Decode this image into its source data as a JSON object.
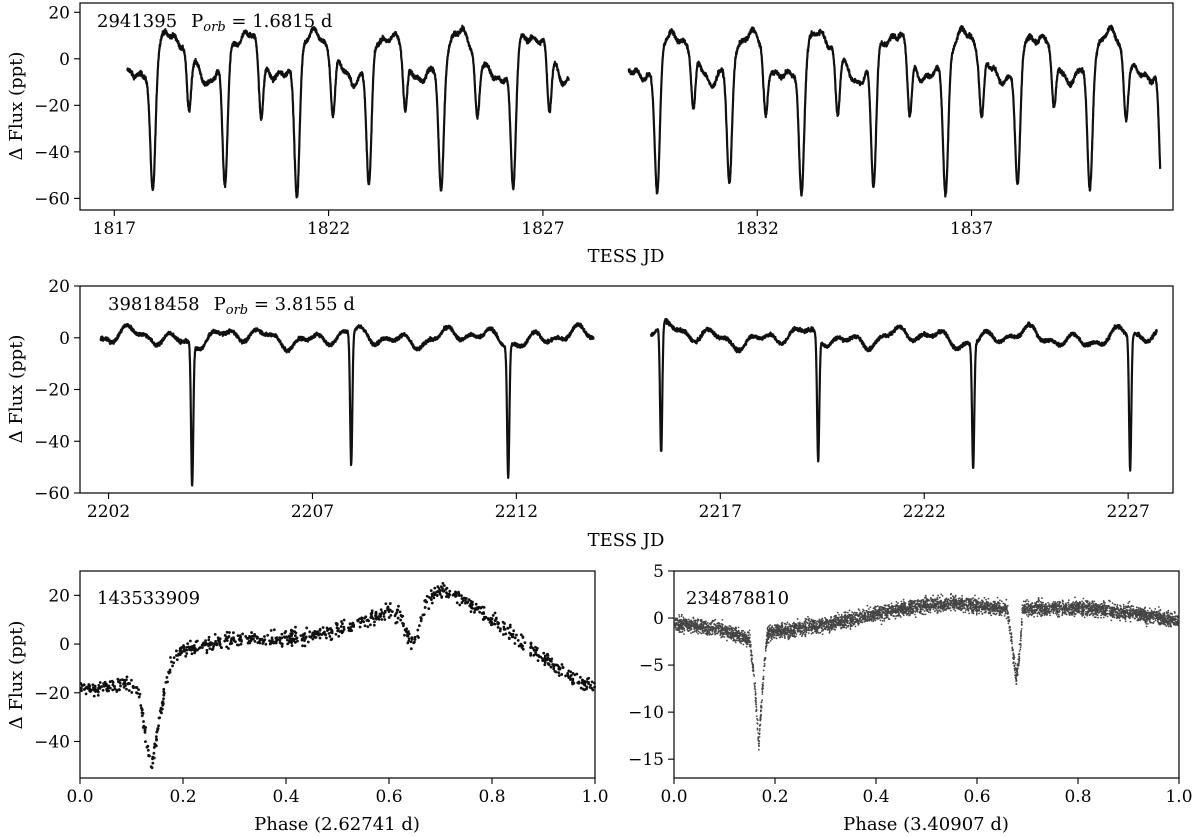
{
  "chart_data": [
    {
      "type": "line",
      "id": "p1",
      "title_id": "2941395",
      "title_label": "P",
      "title_sub": "orb",
      "title_value": " = 1.6815 d",
      "xlabel": "TESS JD",
      "ylabel": "Δ Flux (ppt)",
      "xlim": [
        1816.2,
        1841.7
      ],
      "ylim": [
        -65,
        24
      ],
      "xticks": [
        1817,
        1822,
        1827,
        1832,
        1837
      ],
      "xtick_labels": [
        "1817",
        "1822",
        "1827",
        "1832",
        "1837"
      ],
      "yticks": [
        20,
        0,
        -20,
        -40,
        -60
      ],
      "ytick_labels": [
        "20",
        "0",
        "−20",
        "−40",
        "−60"
      ],
      "segments": [
        [
          1817.3,
          1827.6
        ],
        [
          1829.0,
          1841.4
        ]
      ],
      "eb": {
        "period": 1.6815,
        "primary_epoch": 1817.9,
        "primary_depth": 58,
        "secondary_depth": 26,
        "primary_width": 0.085,
        "secondary_width": 0.07,
        "amp": 10,
        "offset": 5,
        "spot_phase": 0.3
      }
    },
    {
      "type": "line",
      "id": "p2",
      "title_id": "39818458",
      "title_label": "P",
      "title_sub": "orb",
      "title_value": " = 3.8155 d",
      "xlabel": "TESS JD",
      "ylabel": "Δ Flux (ppt)",
      "xlim": [
        2201.3,
        2228.1
      ],
      "ylim": [
        -60,
        20
      ],
      "xticks": [
        2202,
        2207,
        2212,
        2217,
        2222,
        2227
      ],
      "xtick_labels": [
        "2202",
        "2207",
        "2212",
        "2217",
        "2222",
        "2227"
      ],
      "yticks": [
        20,
        0,
        -20,
        -40,
        -60
      ],
      "ytick_labels": [
        "20",
        "0",
        "−20",
        "−40",
        "−60"
      ],
      "segments": [
        [
          2201.8,
          2213.9
        ],
        [
          2215.3,
          2227.7
        ]
      ],
      "eclipses": [
        2204.05,
        2207.95,
        2211.8,
        2215.55,
        2219.4,
        2223.2,
        2227.05
      ],
      "eclipse_depths": [
        55,
        51,
        51,
        50,
        48,
        48,
        52
      ],
      "eclipse_width": 0.06
    },
    {
      "type": "scatter",
      "id": "p3",
      "title_id": "143533909",
      "xlabel": "Phase (2.62741 d)",
      "ylabel": "Δ Flux (ppt)",
      "xlim": [
        0.0,
        1.0
      ],
      "ylim": [
        -55,
        30
      ],
      "xticks": [
        0.0,
        0.2,
        0.4,
        0.6,
        0.8,
        1.0
      ],
      "xtick_labels": [
        "0.0",
        "0.2",
        "0.4",
        "0.6",
        "0.8",
        "1.0"
      ],
      "yticks": [
        20,
        0,
        -20,
        -40
      ],
      "ytick_labels": [
        "20",
        "0",
        "−20",
        "−40"
      ],
      "profile": [
        [
          0.0,
          -19
        ],
        [
          0.1,
          -16
        ],
        [
          0.115,
          -20
        ],
        [
          0.13,
          -42
        ],
        [
          0.14,
          -50
        ],
        [
          0.155,
          -30
        ],
        [
          0.175,
          -8
        ],
        [
          0.2,
          -2
        ],
        [
          0.3,
          2
        ],
        [
          0.45,
          3
        ],
        [
          0.55,
          9
        ],
        [
          0.6,
          14
        ],
        [
          0.62,
          13
        ],
        [
          0.64,
          1
        ],
        [
          0.655,
          3
        ],
        [
          0.67,
          17
        ],
        [
          0.7,
          22
        ],
        [
          0.75,
          18
        ],
        [
          0.85,
          2
        ],
        [
          0.95,
          -13
        ],
        [
          1.0,
          -18
        ]
      ],
      "n_points": 900,
      "scatter": 2.2,
      "dot_size": 2.2
    },
    {
      "type": "scatter",
      "id": "p4",
      "title_id": "234878810",
      "xlabel": "Phase (3.40907 d)",
      "ylabel": "",
      "xlim": [
        0.0,
        1.0
      ],
      "ylim": [
        -17,
        5
      ],
      "xticks": [
        0.0,
        0.2,
        0.4,
        0.6,
        0.8,
        1.0
      ],
      "xtick_labels": [
        "0.0",
        "0.2",
        "0.4",
        "0.6",
        "0.8",
        "1.0"
      ],
      "yticks": [
        5,
        0,
        -5,
        -10,
        -15
      ],
      "ytick_labels": [
        "5",
        "0",
        "−5",
        "−10",
        "−15"
      ],
      "profile": [
        [
          0.0,
          -0.5
        ],
        [
          0.1,
          -1.3
        ],
        [
          0.15,
          -2.3
        ],
        [
          0.16,
          -7
        ],
        [
          0.168,
          -13.5
        ],
        [
          0.176,
          -7
        ],
        [
          0.185,
          -1.6
        ],
        [
          0.3,
          -0.7
        ],
        [
          0.45,
          1.0
        ],
        [
          0.55,
          1.6
        ],
        [
          0.66,
          1.0
        ],
        [
          0.67,
          -3
        ],
        [
          0.678,
          -6.5
        ],
        [
          0.686,
          -3
        ],
        [
          0.69,
          1.0
        ],
        [
          0.8,
          1.1
        ],
        [
          0.9,
          0.6
        ],
        [
          1.0,
          -0.3
        ]
      ],
      "n_points": 5000,
      "scatter": 0.55,
      "dot_size": 1.2
    }
  ]
}
